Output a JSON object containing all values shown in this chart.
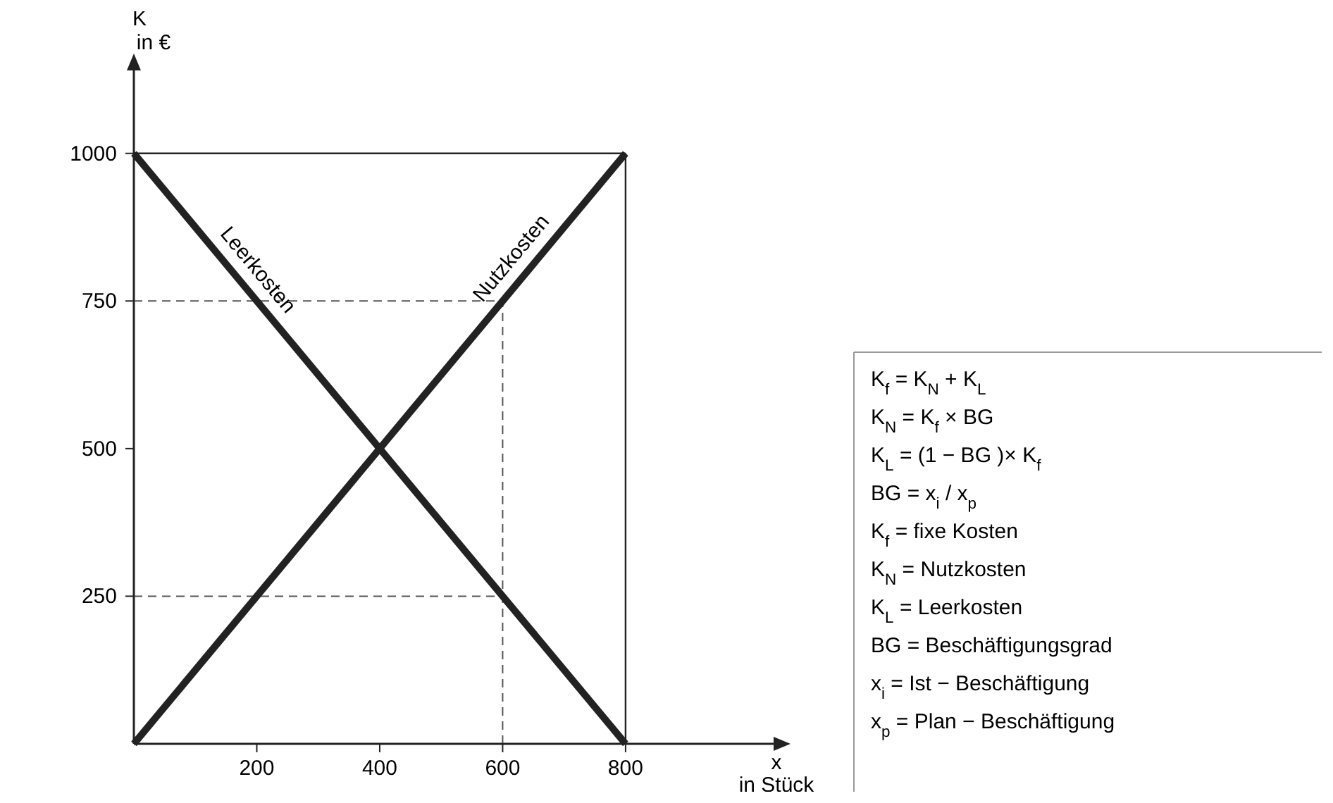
{
  "chart_data": {
    "type": "line",
    "xlabel": "x in Stück",
    "ylabel": "K in €",
    "x": [
      0,
      800
    ],
    "xlim": [
      0,
      1050
    ],
    "ylim": [
      0,
      1150
    ],
    "xticks": [
      200,
      400,
      600,
      800
    ],
    "yticks": [
      250,
      500,
      750,
      1000
    ],
    "grid": false,
    "series": [
      {
        "name": "Leerkosten",
        "color": "#222222",
        "values": [
          1000,
          0
        ]
      },
      {
        "name": "Nutzkosten",
        "color": "#222222",
        "values": [
          0,
          1000
        ]
      }
    ],
    "ref_lines": [
      {
        "axis": "y",
        "value": 750,
        "line_style": "dashed",
        "color": "#555555"
      },
      {
        "axis": "y",
        "value": 250,
        "line_style": "dashed",
        "color": "#555555"
      },
      {
        "axis": "x",
        "value": 600,
        "line_style": "dashed",
        "color": "#555555"
      },
      {
        "axis": "y",
        "value": 1000,
        "line_style": "solid",
        "color": "#222222"
      },
      {
        "axis": "x",
        "value": 800,
        "line_style": "solid",
        "color": "#222222"
      }
    ],
    "annotations": [
      "K$_{f}$ = K$_{N}$ + K$_{L}$",
      "K$_{N}$ = K$_{f}$ × BG",
      "K$_{L}$ = (1 − BG )× K$_{f}$",
      "BG = x$_{i}$ / x$_{p}$",
      "K$_{f}$ = fixe Kosten",
      "K$_{N}$ = Nutzkosten",
      "K$_{L}$ = Leerkosten",
      "BG = Beschäftigungsgrad",
      "x$_{i}$ = Ist − Beschäftigung",
      "x$_{p}$ = Plan − Beschäftigung"
    ]
  }
}
